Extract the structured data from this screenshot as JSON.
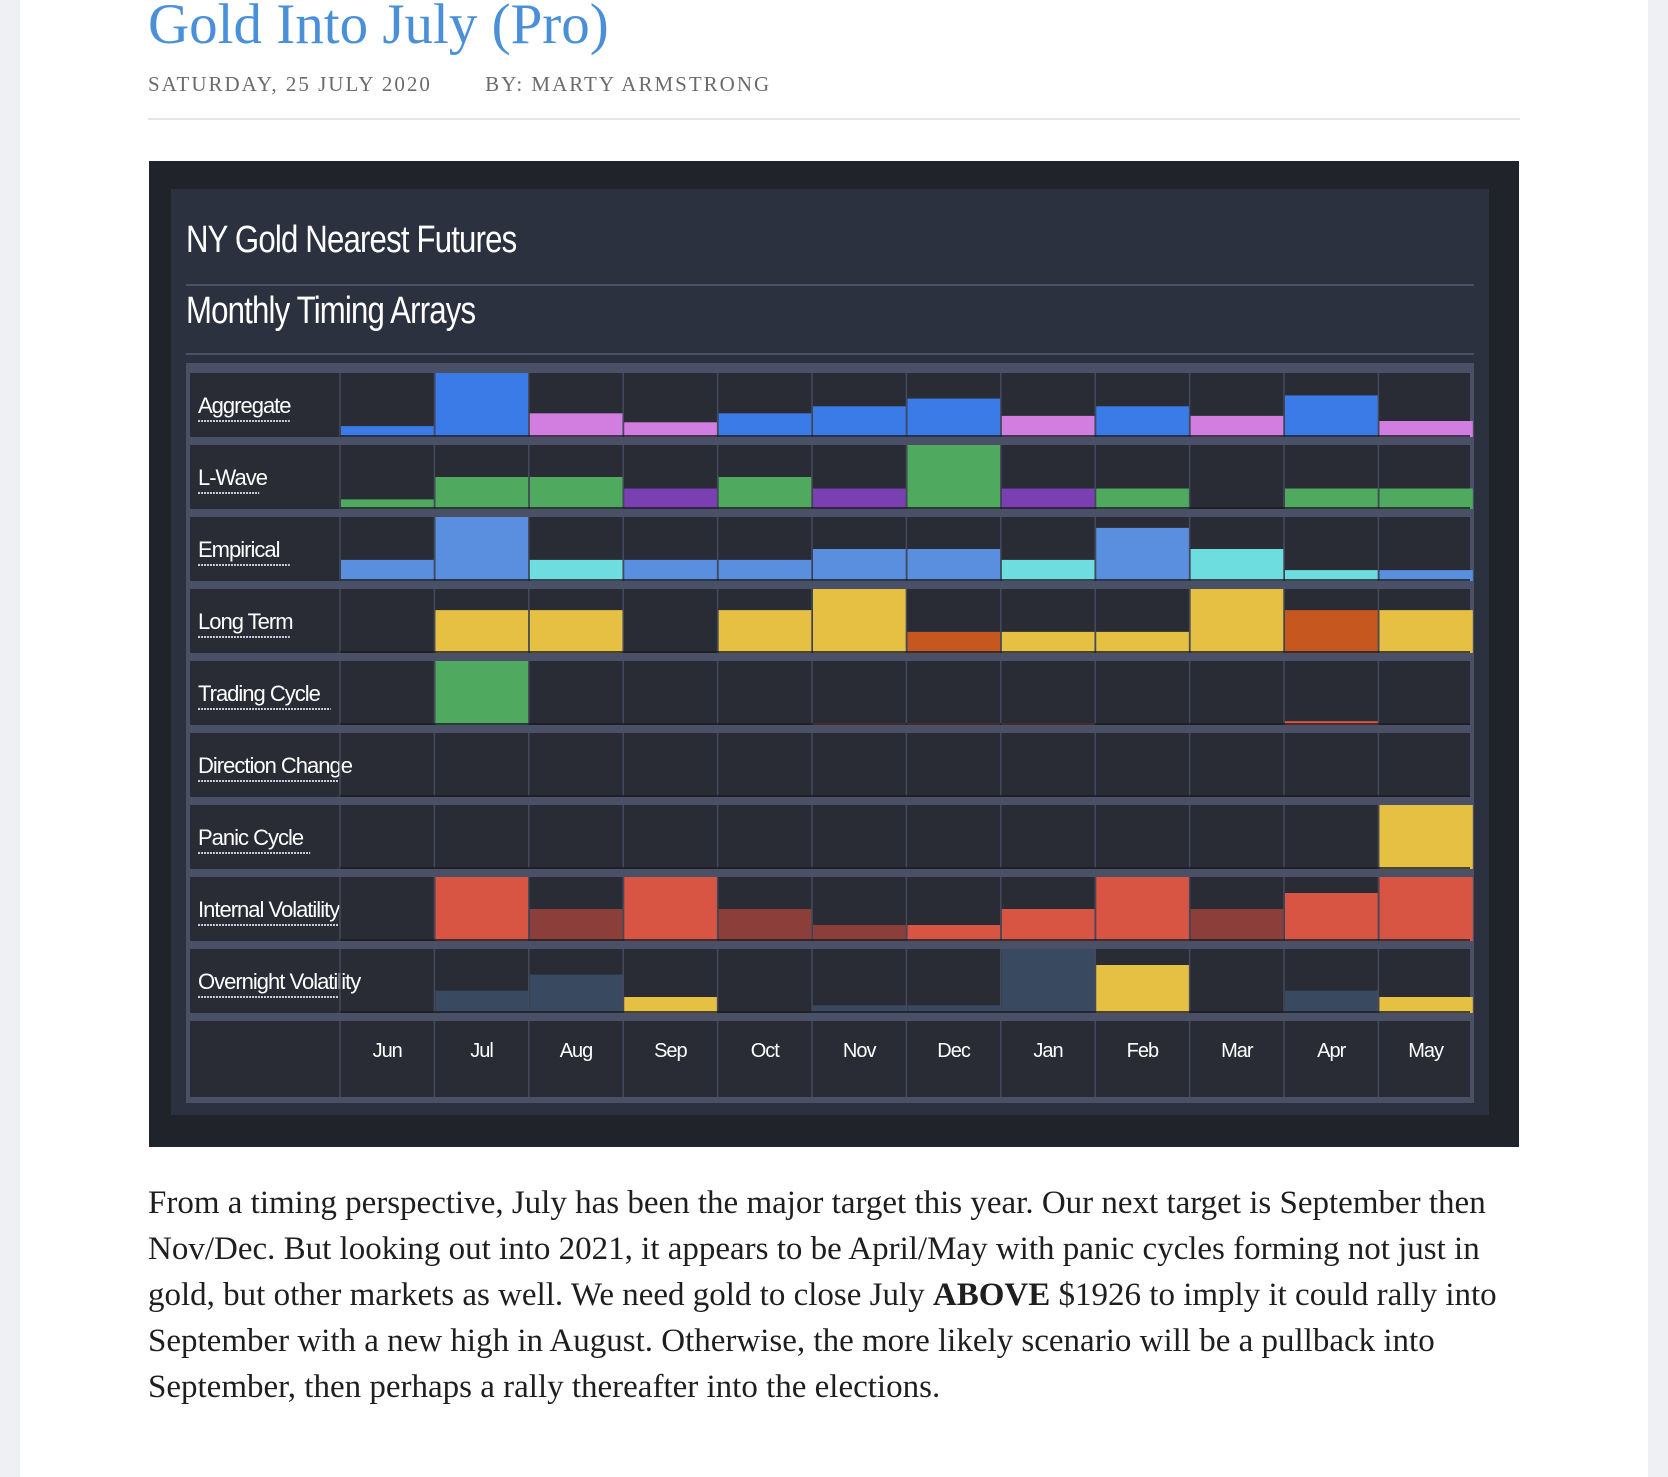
{
  "post": {
    "title": "Gold Into July (Pro)",
    "date": "SATURDAY, 25 JULY 2020",
    "author": "BY: MARTY ARMSTRONG"
  },
  "chart_data": {
    "type": "heatmap",
    "title": "NY Gold Nearest Futures",
    "subtitle": "Monthly Timing Arrays",
    "categories": [
      "Jun",
      "Jul",
      "Aug",
      "Sep",
      "Oct",
      "Nov",
      "Dec",
      "Jan",
      "Feb",
      "Mar",
      "Apr",
      "May"
    ],
    "value_scale": "bar height as fraction of row height (0-1)",
    "colors": {
      "blue": "#3a7be8",
      "lightblue": "#5a8fe0",
      "cyan": "#6ddde0",
      "pink": "#d27de0",
      "green": "#4fa95e",
      "purple": "#7a3fb0",
      "yellow": "#e6c043",
      "orange": "#c5571f",
      "red": "#d85443",
      "darkred": "#8c3e3a",
      "slate": "#394a60"
    },
    "series": [
      {
        "name": "Aggregate",
        "values": [
          0.17,
          1.0,
          0.37,
          0.23,
          0.37,
          0.48,
          0.6,
          0.33,
          0.48,
          0.33,
          0.65,
          0.25
        ],
        "colors": [
          "blue",
          "blue",
          "pink",
          "pink",
          "blue",
          "blue",
          "blue",
          "pink",
          "blue",
          "pink",
          "blue",
          "pink"
        ]
      },
      {
        "name": "L-Wave",
        "values": [
          0.15,
          0.5,
          0.5,
          0.32,
          0.5,
          0.32,
          1.0,
          0.32,
          0.32,
          0,
          0.32,
          0.32
        ],
        "colors": [
          "green",
          "green",
          "green",
          "purple",
          "green",
          "purple",
          "green",
          "purple",
          "green",
          "green",
          "green",
          "green"
        ]
      },
      {
        "name": "Empirical",
        "values": [
          0.33,
          1.0,
          0.33,
          0.33,
          0.33,
          0.5,
          0.5,
          0.33,
          0.83,
          0.5,
          0.17,
          0.17
        ],
        "colors": [
          "lightblue",
          "lightblue",
          "cyan",
          "lightblue",
          "lightblue",
          "lightblue",
          "lightblue",
          "cyan",
          "lightblue",
          "cyan",
          "cyan",
          "lightblue"
        ]
      },
      {
        "name": "Long Term",
        "values": [
          0,
          0.67,
          0.67,
          0,
          0.67,
          1.0,
          0.33,
          0.33,
          0.33,
          1.0,
          0.67,
          0.67
        ],
        "colors": [
          "yellow",
          "yellow",
          "yellow",
          "yellow",
          "yellow",
          "yellow",
          "orange",
          "yellow",
          "yellow",
          "yellow",
          "orange",
          "yellow"
        ]
      },
      {
        "name": "Trading Cycle",
        "values": [
          0,
          1.0,
          0,
          0,
          0,
          0.03,
          0.03,
          0.03,
          0,
          0,
          0.06,
          0
        ],
        "colors": [
          "green",
          "green",
          "green",
          "green",
          "green",
          "red",
          "red",
          "red",
          "red",
          "red",
          "red",
          "red"
        ]
      },
      {
        "name": "Direction Change",
        "values": [
          0,
          0,
          0,
          0,
          0,
          0,
          0,
          0,
          0,
          0,
          0,
          0
        ],
        "colors": [
          "yellow",
          "yellow",
          "yellow",
          "yellow",
          "yellow",
          "yellow",
          "yellow",
          "yellow",
          "yellow",
          "yellow",
          "yellow",
          "yellow"
        ]
      },
      {
        "name": "Panic Cycle",
        "values": [
          0,
          0,
          0,
          0,
          0,
          0,
          0,
          0,
          0,
          0,
          0,
          1.0
        ],
        "colors": [
          "yellow",
          "yellow",
          "yellow",
          "yellow",
          "yellow",
          "yellow",
          "yellow",
          "yellow",
          "yellow",
          "yellow",
          "yellow",
          "yellow"
        ]
      },
      {
        "name": "Internal Volatility",
        "values": [
          0,
          1.0,
          0.5,
          1.0,
          0.5,
          0.25,
          0.25,
          0.5,
          1.0,
          0.5,
          0.75,
          1.0
        ],
        "colors": [
          "red",
          "red",
          "darkred",
          "red",
          "darkred",
          "darkred",
          "red",
          "red",
          "red",
          "darkred",
          "red",
          "red"
        ]
      },
      {
        "name": "Overnight Volatility",
        "values": [
          0,
          0.35,
          0.6,
          0.25,
          0,
          0.12,
          0.12,
          1.0,
          0.75,
          0,
          0.35,
          0.25
        ],
        "colors": [
          "slate",
          "slate",
          "slate",
          "yellow",
          "slate",
          "slate",
          "slate",
          "slate",
          "yellow",
          "slate",
          "slate",
          "yellow"
        ]
      }
    ]
  },
  "article": {
    "p1": "From a timing perspective, July has been the major target this year. Our next target is September then Nov/Dec. But looking out into 2021, it appears to be April/May with panic cycles forming not just in gold, but other markets as well. We need gold to close July ",
    "bold": "ABOVE",
    "p2": " $1926 to imply it could rally into September with a new high in August. Otherwise, the more likely scenario will be a pullback into September, then perhaps a rally thereafter into the elections."
  }
}
